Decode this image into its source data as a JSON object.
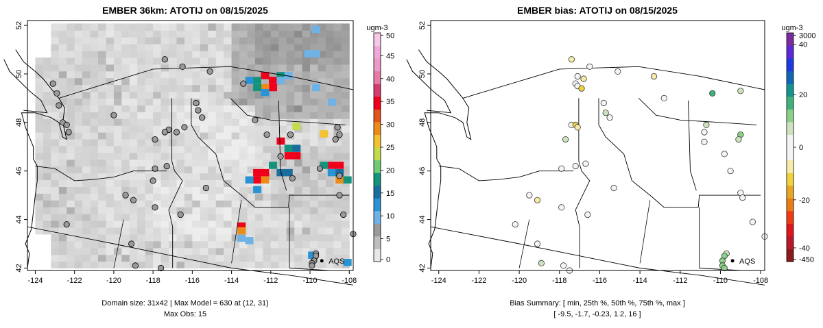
{
  "panels": [
    {
      "id": "left",
      "title": "EMBER 36km: ATOTIJ on 08/15/2025",
      "colorbar": {
        "unit": "ugm-3",
        "ticks": [
          "0",
          "5",
          "10",
          "15",
          "20",
          "25",
          "30",
          "35",
          "40",
          "45",
          "50"
        ],
        "colors": [
          "#e8e8e8",
          "#bebebe",
          "#9a9a9a",
          "#6fb2e6",
          "#2a93d4",
          "#1a6e9e",
          "#13937c",
          "#6fcc72",
          "#c3dc4a",
          "#f2c230",
          "#ec8a1a",
          "#e4541a",
          "#f0001a",
          "#d43c6e",
          "#e87aa8",
          "#ec98c8",
          "#f1a8d8",
          "#f7c7e8"
        ]
      },
      "x_ticks": [
        "-124",
        "-122",
        "-120",
        "-118",
        "-116",
        "-114",
        "-112",
        "-110",
        "-108"
      ],
      "y_ticks": [
        "42",
        "44",
        "46",
        "48",
        "50",
        "52"
      ],
      "aqs_label": "AQS",
      "footer_lines": [
        "Domain size: 31x42 | Max Model = 630 at (12, 31)",
        "Max Obs: 15"
      ]
    },
    {
      "id": "right",
      "title": "EMBER bias: ATOTIJ on 08/15/2025",
      "colorbar": {
        "unit": "ugm-3",
        "ticks": [
          "3000",
          "40",
          "20",
          "0",
          "-20",
          "-40",
          "-450"
        ],
        "colors": [
          "#8b1a1a",
          "#b8182a",
          "#e0141c",
          "#f23a14",
          "#ee7a14",
          "#e8a622",
          "#f0d23c",
          "#f5ecaa",
          "#f4f4f4",
          "#f4f4f4",
          "#cde3c0",
          "#8bcf88",
          "#42b07c",
          "#139490",
          "#1266b6",
          "#1d3ae0",
          "#5a2ad8",
          "#7a2c9e"
        ]
      },
      "x_ticks": [
        "-124",
        "-122",
        "-120",
        "-118",
        "-116",
        "-114",
        "-112",
        "-110",
        "-108"
      ],
      "y_ticks": [
        "42",
        "44",
        "46",
        "48",
        "50",
        "52"
      ],
      "aqs_label": "AQS",
      "footer_lines": [
        "Bias Summary: [ min, 25th %, 50th %, 75th %, max ]",
        "[ -9.5,   -1.7,   -0.23,   1.2,   16 ]"
      ]
    }
  ],
  "map_data": {
    "lon_range": [
      -124.4,
      -107.8
    ],
    "lat_range": [
      41.9,
      52.2
    ],
    "left_obs_sites": [
      [
        -123.1,
        49.6
      ],
      [
        -122.9,
        49.2
      ],
      [
        -122.6,
        48.0
      ],
      [
        -122.3,
        47.6
      ],
      [
        -122.4,
        47.9
      ],
      [
        -122.8,
        48.7
      ],
      [
        -117.4,
        50.6
      ],
      [
        -116.5,
        50.3
      ],
      [
        -115.1,
        50.1
      ],
      [
        -113.4,
        49.6
      ],
      [
        -117.2,
        47.7
      ],
      [
        -117.4,
        47.6
      ],
      [
        -117.9,
        47.3
      ],
      [
        -116.8,
        47.6
      ],
      [
        -116.4,
        47.8
      ],
      [
        -115.8,
        48.8
      ],
      [
        -115.7,
        48.5
      ],
      [
        -115.5,
        48.2
      ],
      [
        -112.8,
        48.1
      ],
      [
        -111.5,
        46.6
      ],
      [
        -110.9,
        45.7
      ],
      [
        -111.0,
        47.5
      ],
      [
        -108.6,
        47.8
      ],
      [
        -108.5,
        47.5
      ],
      [
        -108.7,
        47.3
      ],
      [
        -109.5,
        46.1
      ],
      [
        -108.5,
        45.8
      ],
      [
        -108.5,
        45.0
      ],
      [
        -108.3,
        44.2
      ],
      [
        -107.8,
        43.4
      ],
      [
        -109.7,
        42.6
      ],
      [
        -109.7,
        42.5
      ],
      [
        -109.8,
        42.3
      ],
      [
        -109.9,
        42.2
      ],
      [
        -109.9,
        42.1
      ],
      [
        -117.9,
        46.1
      ],
      [
        -117.3,
        46.2
      ],
      [
        -118.0,
        45.6
      ],
      [
        -115.3,
        45.3
      ],
      [
        -119.4,
        45.0
      ],
      [
        -119.0,
        44.8
      ],
      [
        -117.9,
        44.5
      ],
      [
        -116.6,
        44.2
      ],
      [
        -119.1,
        43.0
      ],
      [
        -118.9,
        42.1
      ],
      [
        -122.4,
        43.8
      ],
      [
        -117.6,
        42.0
      ],
      [
        -120.0,
        48.3
      ],
      [
        -112.2,
        47.5
      ]
    ],
    "right_obs_sites": [
      [
        -117.4,
        50.6,
        "#f5ecaa"
      ],
      [
        -116.5,
        50.3,
        "#f4f4f4"
      ],
      [
        -115.1,
        50.1,
        "#f4f4f4"
      ],
      [
        -113.3,
        49.9,
        "#f5ecaa"
      ],
      [
        -117.2,
        49.6,
        "#f4f4f4"
      ],
      [
        -117.1,
        49.5,
        "#f4f4f4"
      ],
      [
        -116.9,
        49.4,
        "#f0d23c"
      ],
      [
        -116.8,
        49.8,
        "#f5ecaa"
      ],
      [
        -117.1,
        49.9,
        "#f4f4f4"
      ],
      [
        -115.8,
        48.8,
        "#f4f4f4"
      ],
      [
        -115.7,
        48.4,
        "#cde3c0"
      ],
      [
        -115.5,
        48.2,
        "#f4f4f4"
      ],
      [
        -112.8,
        49.0,
        "#f4f4f4"
      ],
      [
        -110.4,
        49.2,
        "#42b07c"
      ],
      [
        -109.0,
        49.3,
        "#cde3c0"
      ],
      [
        -117.4,
        47.9,
        "#f4f4f4"
      ],
      [
        -117.2,
        47.9,
        "#f0d23c"
      ],
      [
        -117.1,
        47.8,
        "#f5ecaa"
      ],
      [
        -117.7,
        47.3,
        "#cde3c0"
      ],
      [
        -110.7,
        47.9,
        "#cde3c0"
      ],
      [
        -110.8,
        47.6,
        "#f4f4f4"
      ],
      [
        -110.8,
        47.2,
        "#f4f4f4"
      ],
      [
        -109.0,
        47.5,
        "#8bcf88"
      ],
      [
        -109.1,
        47.3,
        "#cde3c0"
      ],
      [
        -117.9,
        46.1,
        "#f4f4f4"
      ],
      [
        -117.2,
        46.2,
        "#f4f4f4"
      ],
      [
        -116.7,
        46.3,
        "#f4f4f4"
      ],
      [
        -115.3,
        45.3,
        "#f4f4f4"
      ],
      [
        -109.8,
        46.7,
        "#f4f4f4"
      ],
      [
        -109.5,
        46.0,
        "#f4f4f4"
      ],
      [
        -109.0,
        45.1,
        "#f4f4f4"
      ],
      [
        -108.9,
        44.9,
        "#f4f4f4"
      ],
      [
        -108.4,
        43.9,
        "#f4f4f4"
      ],
      [
        -107.8,
        43.3,
        "#f4f4f4"
      ],
      [
        -119.5,
        45.0,
        "#f4f4f4"
      ],
      [
        -119.1,
        44.8,
        "#f5ecaa"
      ],
      [
        -117.9,
        44.5,
        "#f4f4f4"
      ],
      [
        -116.6,
        44.2,
        "#f4f4f4"
      ],
      [
        -120.2,
        43.8,
        "#f4f4f4"
      ],
      [
        -119.1,
        43.0,
        "#f4f4f4"
      ],
      [
        -118.9,
        42.2,
        "#cde3c0"
      ],
      [
        -117.8,
        42.1,
        "#f4f4f4"
      ],
      [
        -117.5,
        41.9,
        "#f4f4f4"
      ],
      [
        -109.7,
        42.6,
        "#cde3c0"
      ],
      [
        -109.8,
        42.5,
        "#8bcf88"
      ],
      [
        -109.9,
        42.3,
        "#8bcf88"
      ],
      [
        -109.9,
        42.1,
        "#8bcf88"
      ],
      [
        -109.8,
        42.0,
        "#8bcf88"
      ]
    ],
    "hotspots": [
      [
        -112.5,
        49.8,
        "#f0001a"
      ],
      [
        -112.1,
        49.6,
        "#f0001a"
      ],
      [
        -112.1,
        49.3,
        "#f0001a"
      ],
      [
        -112.5,
        49.3,
        "#ec8a1a"
      ],
      [
        -112.9,
        49.6,
        "#13937c"
      ],
      [
        -113.3,
        49.6,
        "#2a93d4"
      ],
      [
        -111.7,
        49.8,
        "#13937c"
      ],
      [
        -111.3,
        49.8,
        "#6fb2e6"
      ],
      [
        -112.9,
        49.3,
        "#13937c"
      ],
      [
        -111.7,
        49.6,
        "#6fb2e6"
      ],
      [
        -110.9,
        47.7,
        "#c3dc4a"
      ],
      [
        -111.7,
        47.1,
        "#f0001a"
      ],
      [
        -111.3,
        46.8,
        "#13937c"
      ],
      [
        -110.9,
        46.8,
        "#1a6e9e"
      ],
      [
        -111.3,
        46.5,
        "#f0001a"
      ],
      [
        -110.9,
        46.5,
        "#f0001a"
      ],
      [
        -109.5,
        47.4,
        "#f2c230"
      ],
      [
        -109.1,
        46.1,
        "#f0001a"
      ],
      [
        -108.7,
        46.1,
        "#f0001a"
      ],
      [
        -109.5,
        46.1,
        "#13937c"
      ],
      [
        -109.1,
        45.8,
        "#2a93d4"
      ],
      [
        -108.7,
        45.8,
        "#1a6e9e"
      ],
      [
        -108.7,
        45.5,
        "#ec8a1a"
      ],
      [
        -108.3,
        45.5,
        "#13937c"
      ],
      [
        -112.9,
        45.8,
        "#f0001a"
      ],
      [
        -112.5,
        45.8,
        "#f0001a"
      ],
      [
        -112.9,
        45.5,
        "#f0001a"
      ],
      [
        -112.5,
        45.5,
        "#ec8a1a"
      ],
      [
        -113.3,
        45.5,
        "#2a93d4"
      ],
      [
        -112.1,
        46.1,
        "#13937c"
      ],
      [
        -111.7,
        45.8,
        "#1a6e9e"
      ],
      [
        -111.3,
        45.8,
        "#1a6e9e"
      ],
      [
        -113.7,
        43.6,
        "#f0001a"
      ],
      [
        -113.7,
        43.4,
        "#ec8a1a"
      ],
      [
        -113.3,
        43.0,
        "#6fb2e6"
      ],
      [
        -113.7,
        43.1,
        "#6fb2e6"
      ],
      [
        -112.9,
        45.1,
        "#2a93d4"
      ],
      [
        -112.5,
        49.1,
        "#2a93d4"
      ],
      [
        -110.1,
        42.4,
        "#2a93d4"
      ],
      [
        -108.3,
        42.1,
        "#2a93d4"
      ],
      [
        -109.9,
        51.7,
        "#6fb2e6"
      ],
      [
        -109.9,
        50.7,
        "#6fb2e6"
      ],
      [
        -110.3,
        50.7,
        "#6fb2e6"
      ],
      [
        -109.1,
        48.7,
        "#6fb2e6"
      ],
      [
        -109.9,
        49.3,
        "#6fb2e6"
      ]
    ],
    "aqs_point": [
      -109.4,
      42.3
    ]
  }
}
